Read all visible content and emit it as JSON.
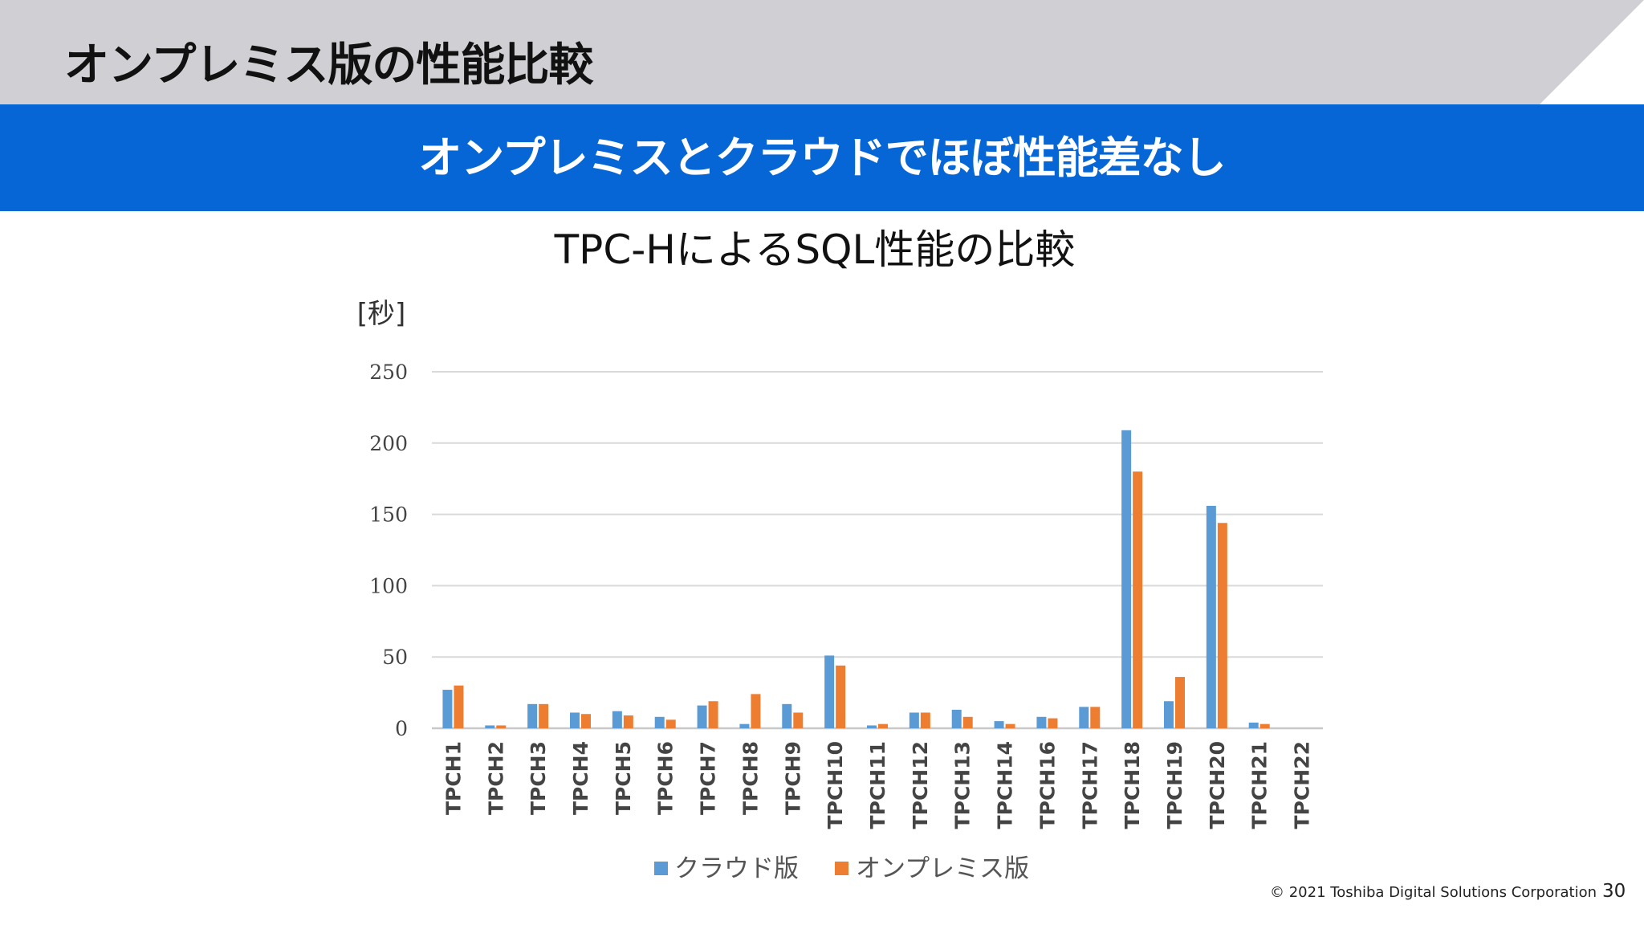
{
  "header": {
    "title": "オンプレミス版の性能比較",
    "banner": "オンプレミスとクラウドでほぼ性能差なし"
  },
  "chart_data": {
    "type": "bar",
    "title": "TPC-HによるSQL性能の比較",
    "ylabel": "[秒]",
    "ylim": [
      0,
      250
    ],
    "yticks": [
      "0",
      "50",
      "100",
      "150",
      "200",
      "250"
    ],
    "grid": true,
    "legend_position": "bottom",
    "categories": [
      "TPCH1",
      "TPCH2",
      "TPCH3",
      "TPCH4",
      "TPCH5",
      "TPCH6",
      "TPCH7",
      "TPCH8",
      "TPCH9",
      "TPCH10",
      "TPCH11",
      "TPCH12",
      "TPCH13",
      "TPCH14",
      "TPCH16",
      "TPCH17",
      "TPCH18",
      "TPCH19",
      "TPCH20",
      "TPCH21",
      "TPCH22"
    ],
    "series": [
      {
        "name": "クラウド版",
        "color": "#5b9bd5",
        "values": [
          27,
          2,
          17,
          11,
          12,
          8,
          16,
          3,
          17,
          51,
          2,
          11,
          13,
          5,
          8,
          15,
          209,
          19,
          156,
          4,
          0
        ]
      },
      {
        "name": "オンプレミス版",
        "color": "#ed7d31",
        "values": [
          30,
          2,
          17,
          10,
          9,
          6,
          19,
          24,
          11,
          44,
          3,
          11,
          8,
          3,
          7,
          15,
          180,
          36,
          144,
          3,
          0
        ]
      }
    ]
  },
  "footer": {
    "copyright": "© 2021 Toshiba Digital Solutions Corporation",
    "page": "30"
  }
}
